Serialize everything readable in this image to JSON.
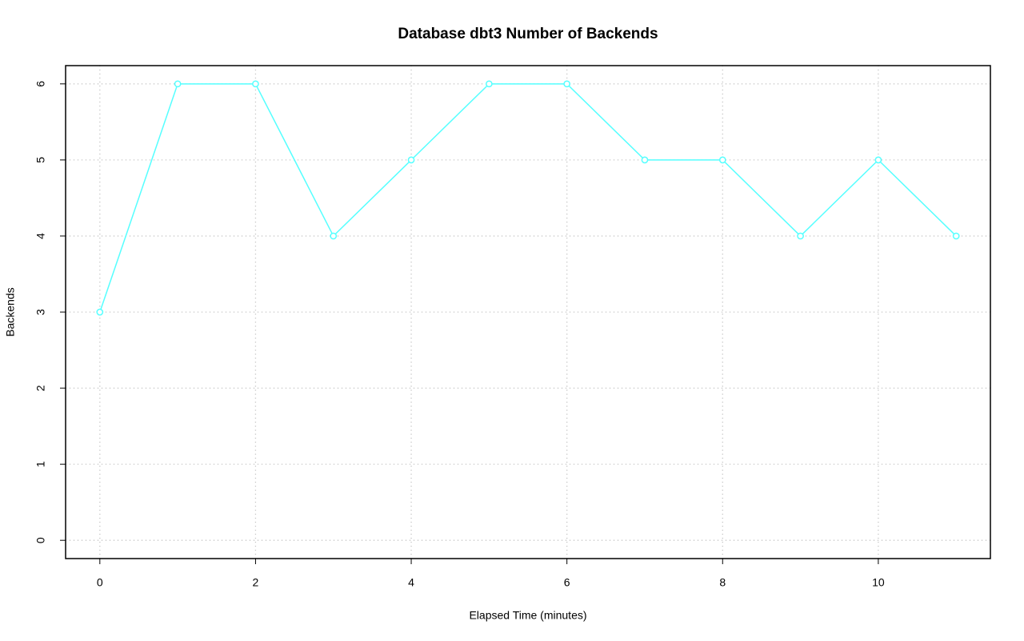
{
  "chart_data": {
    "type": "line",
    "title": "Database dbt3 Number of Backends",
    "x_label": "Elapsed Time (minutes)",
    "y_label": "Backends",
    "x": [
      0,
      1,
      2,
      3,
      4,
      5,
      6,
      7,
      8,
      9,
      10,
      11
    ],
    "series": [
      {
        "color": "#55ffff",
        "values": [
          3,
          6,
          6,
          4,
          5,
          6,
          6,
          5,
          5,
          4,
          5,
          4
        ]
      }
    ],
    "xlim": [
      -0.44,
      11.44
    ],
    "ylim": [
      -0.24,
      6.24
    ],
    "xticks": [
      0,
      2,
      4,
      6,
      8,
      10
    ],
    "yticks": [
      0,
      1,
      2,
      3,
      4,
      5,
      6
    ],
    "grid": true,
    "markers": true
  }
}
